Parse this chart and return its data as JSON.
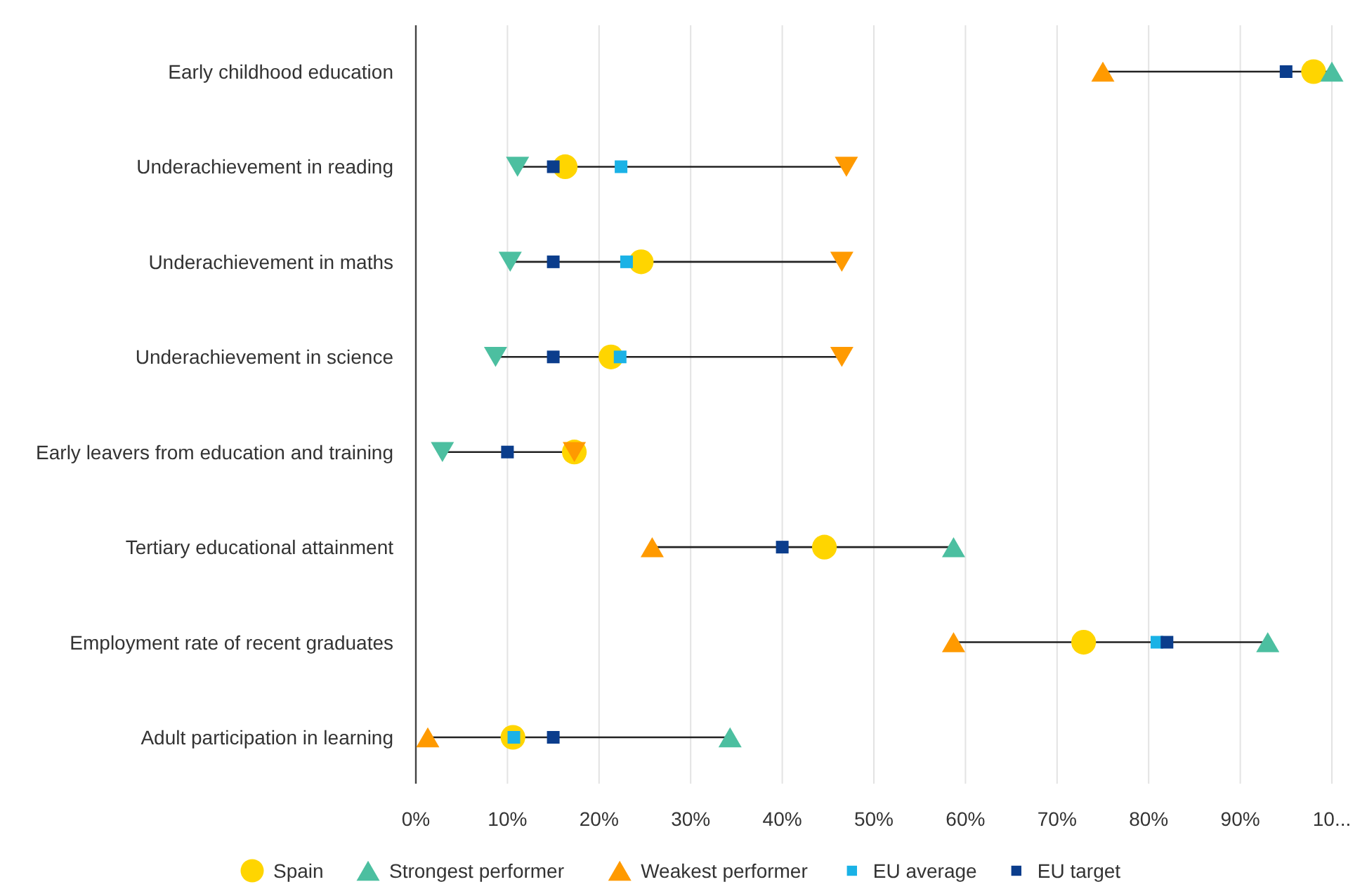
{
  "chart_data": {
    "type": "scatter",
    "orientation": "horizontal",
    "categories": [
      "Early childhood education",
      "Underachievement in reading",
      "Underachievement in maths",
      "Underachievement in science",
      "Early leavers from education and training",
      "Tertiary educational attainment",
      "Employment rate of recent graduates",
      "Adult participation in learning"
    ],
    "series": [
      {
        "name": "Spain",
        "color": "#ffd500",
        "marker": "circle",
        "values": [
          98,
          16.3,
          24.6,
          21.3,
          17.3,
          44.6,
          72.9,
          10.6
        ]
      },
      {
        "name": "Strongest performer",
        "color": "#4cbfa0",
        "marker": "triangle",
        "values": [
          100,
          11.1,
          10.3,
          8.7,
          2.9,
          58.7,
          93,
          34.3
        ]
      },
      {
        "name": "Weakest performer",
        "color": "#ff9a00",
        "marker": "triangle",
        "values": [
          75,
          47,
          46.5,
          46.5,
          17.3,
          25.8,
          58.7,
          1.3
        ]
      },
      {
        "name": "EU average",
        "color": "#1ab2e6",
        "marker": "square",
        "values": [
          null,
          22.4,
          23,
          22.3,
          null,
          null,
          80.9,
          10.7
        ]
      },
      {
        "name": "EU target",
        "color": "#0b3d8c",
        "marker": "square",
        "values": [
          95,
          15,
          15,
          15,
          10,
          40,
          82,
          15
        ]
      }
    ],
    "xlim": [
      0,
      100
    ],
    "xticks": [
      {
        "value": 0,
        "label": "0%"
      },
      {
        "value": 10,
        "label": "10%"
      },
      {
        "value": 20,
        "label": "20%"
      },
      {
        "value": 30,
        "label": "30%"
      },
      {
        "value": 40,
        "label": "40%"
      },
      {
        "value": 50,
        "label": "50%"
      },
      {
        "value": 60,
        "label": "60%"
      },
      {
        "value": 70,
        "label": "70%"
      },
      {
        "value": 80,
        "label": "80%"
      },
      {
        "value": 90,
        "label": "90%"
      },
      {
        "value": 100,
        "label": "10..."
      }
    ],
    "grid": "x",
    "legend": "bottom"
  }
}
